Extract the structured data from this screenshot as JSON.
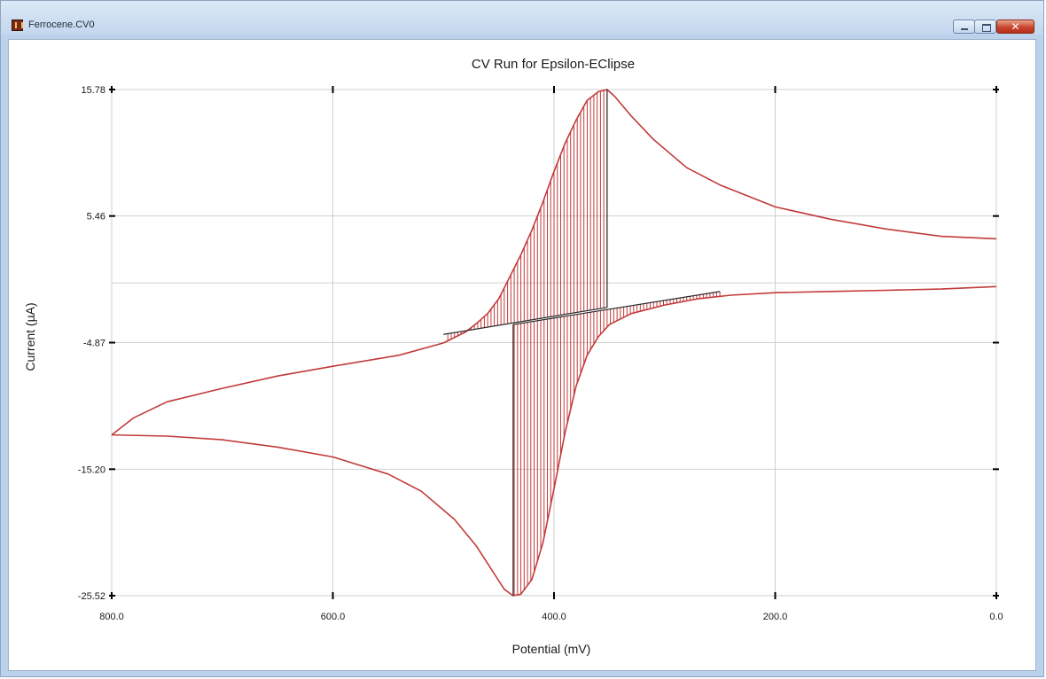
{
  "window": {
    "title": "Ferrocene.CV0",
    "close_glyph": "✕"
  },
  "colors": {
    "curve": "#c23a3a",
    "hatch": "#c23a3a",
    "baseline": "#2a2a2a",
    "grid": "#cfcfcf",
    "axis": "#000000"
  },
  "chart_data": {
    "type": "line",
    "title": "CV Run for Epsilon-EClipse",
    "xlabel": "Potential (mV)",
    "ylabel": "Current (µA)",
    "xlim": [
      800,
      0
    ],
    "ylim": [
      -25.52,
      15.78
    ],
    "x_ticks": [
      "800.0",
      "600.0",
      "400.0",
      "200.0",
      "0.0"
    ],
    "y_ticks": [
      "15.78",
      "5.46",
      "-4.87",
      "-15.20",
      "-25.52"
    ],
    "grid": true,
    "zero_line": true,
    "series": [
      {
        "values": [
          [
            0,
            3.6
          ],
          [
            50,
            3.8
          ],
          [
            100,
            4.4
          ],
          [
            150,
            5.2
          ],
          [
            200,
            6.2
          ],
          [
            250,
            8.0
          ],
          [
            280,
            9.4
          ],
          [
            310,
            11.7
          ],
          [
            330,
            13.6
          ],
          [
            345,
            15.2
          ],
          [
            352,
            15.78
          ],
          [
            360,
            15.6
          ],
          [
            370,
            14.9
          ],
          [
            380,
            13.3
          ],
          [
            390,
            11.4
          ],
          [
            400,
            9.1
          ],
          [
            410,
            6.6
          ],
          [
            420,
            4.3
          ],
          [
            430,
            2.3
          ],
          [
            440,
            0.5
          ],
          [
            450,
            -1.3
          ],
          [
            460,
            -2.5
          ],
          [
            470,
            -3.3
          ],
          [
            480,
            -4.0
          ],
          [
            500,
            -4.9
          ],
          [
            540,
            -5.9
          ],
          [
            600,
            -6.8
          ],
          [
            650,
            -7.6
          ],
          [
            700,
            -8.6
          ],
          [
            750,
            -9.7
          ],
          [
            780,
            -11.0
          ],
          [
            800,
            -12.4
          ]
        ]
      },
      {
        "values": [
          [
            800,
            -12.4
          ],
          [
            750,
            -12.5
          ],
          [
            700,
            -12.8
          ],
          [
            650,
            -13.4
          ],
          [
            600,
            -14.2
          ],
          [
            550,
            -15.6
          ],
          [
            520,
            -17.0
          ],
          [
            490,
            -19.3
          ],
          [
            470,
            -21.5
          ],
          [
            455,
            -23.6
          ],
          [
            445,
            -25.0
          ],
          [
            437,
            -25.52
          ],
          [
            430,
            -25.4
          ],
          [
            420,
            -24.2
          ],
          [
            410,
            -21.2
          ],
          [
            400,
            -16.8
          ],
          [
            390,
            -12.2
          ],
          [
            380,
            -8.4
          ],
          [
            370,
            -5.9
          ],
          [
            360,
            -4.4
          ],
          [
            350,
            -3.4
          ],
          [
            330,
            -2.5
          ],
          [
            300,
            -1.8
          ],
          [
            270,
            -1.3
          ],
          [
            240,
            -1.0
          ],
          [
            200,
            -0.8
          ],
          [
            150,
            -0.7
          ],
          [
            100,
            -0.6
          ],
          [
            50,
            -0.5
          ],
          [
            0,
            -0.3
          ]
        ]
      }
    ],
    "baselines": [
      {
        "x": [
          500,
          352
        ],
        "y": [
          -4.2,
          -2.0
        ]
      },
      {
        "x": [
          437,
          250
        ],
        "y": [
          -3.4,
          -0.7
        ]
      }
    ]
  }
}
